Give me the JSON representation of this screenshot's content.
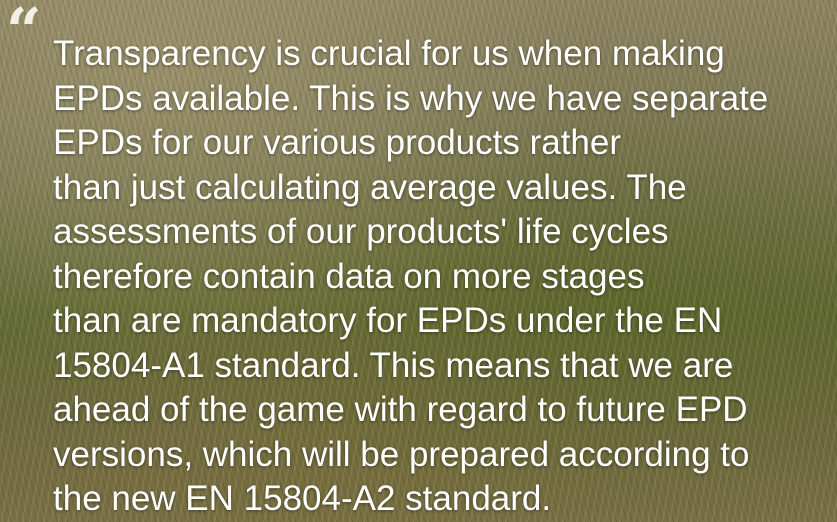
{
  "quote": {
    "mark": "“",
    "lines": [
      "Transparency is crucial for us when making",
      "EPDs available. This is why we have separate",
      "EPDs for our various products rather",
      "than just calculating average values. The",
      "assessments of our products' life cycles",
      "therefore contain data on more stages",
      "than are mandatory for EPDs under the EN",
      "15804-A1 standard. This means that we are",
      "ahead of the game with regard to future EPD",
      "versions, which will be prepared according to",
      "the new EN 15804-A2 standard."
    ]
  }
}
